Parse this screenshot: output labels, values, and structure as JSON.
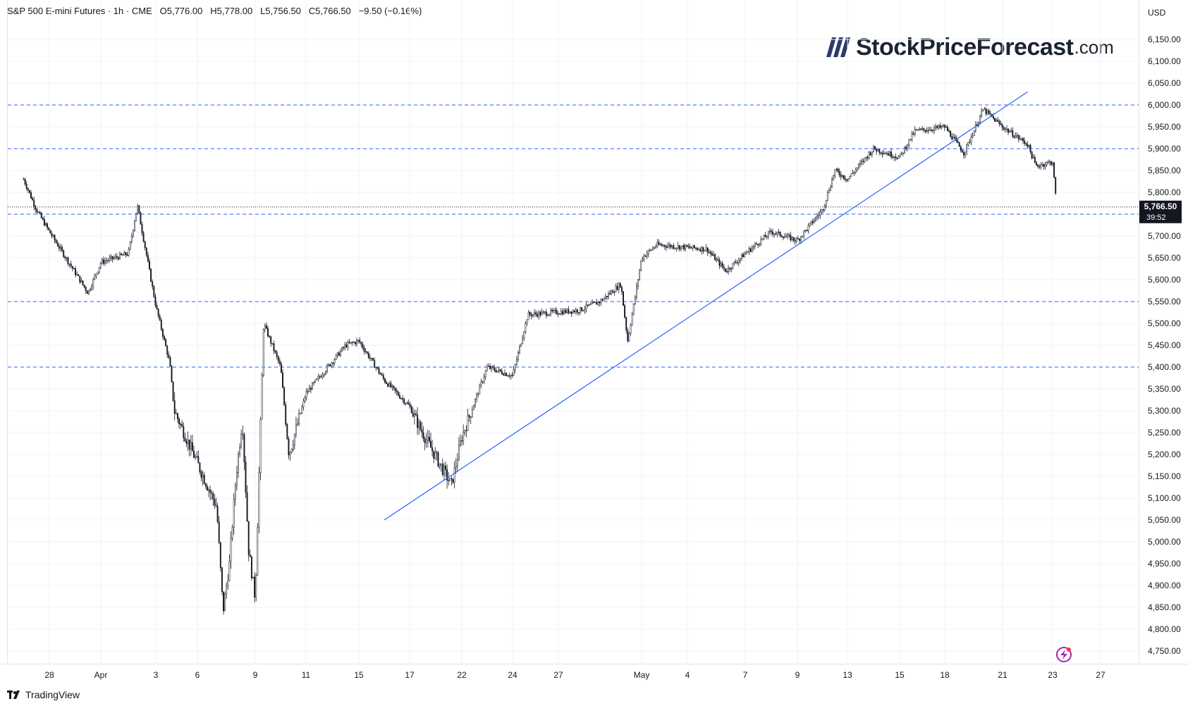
{
  "header": {
    "symbol": "S&P 500 E-mini Futures",
    "interval": "1h",
    "exchange": "CME",
    "open": "O5,776.00",
    "high": "H5,778.00",
    "low": "L5,756.50",
    "close": "C5,766.50",
    "change": "−9.50 (−0.16%)"
  },
  "currency": "USD",
  "brand": {
    "name": "StockPriceForecast",
    "tld": ".com"
  },
  "footer": {
    "text": "TradingView",
    "icon": "tradingview-logo-icon"
  },
  "price_label": {
    "value": "5,766.50",
    "countdown": "39:52"
  },
  "colors": {
    "candles": "#131722",
    "horizontal_levels": "#2962ff",
    "trendline": "#2962ff",
    "price_label_bg": "#131722",
    "text": "#131722",
    "lightning_icon": "#9c27b0"
  },
  "chart_data": {
    "type": "candlestick",
    "title": "S&P 500 E-mini Futures",
    "timeframe": "1h",
    "x_ticks": [
      "28",
      "Apr",
      "3",
      "6",
      "9",
      "11",
      "15",
      "17",
      "22",
      "24",
      "27",
      "May",
      "4",
      "7",
      "9",
      "13",
      "15",
      "18",
      "21",
      "23",
      "27"
    ],
    "y_ticks": [
      "6,150.00",
      "6,100.00",
      "6,050.00",
      "6,000.00",
      "5,950.00",
      "5,900.00",
      "5,850.00",
      "5,800.00",
      "5,750.00",
      "5,700.00",
      "5,650.00",
      "5,600.00",
      "5,550.00",
      "5,500.00",
      "5,450.00",
      "5,400.00",
      "5,350.00",
      "5,300.00",
      "5,250.00",
      "5,200.00",
      "5,150.00",
      "5,100.00",
      "5,050.00",
      "5,000.00",
      "4,950.00",
      "4,900.00",
      "4,850.00",
      "4,800.00",
      "4,750.00"
    ],
    "ylim": [
      4720,
      6180
    ],
    "horizontal_levels": [
      6000,
      5900,
      5750,
      5550,
      5400
    ],
    "current_price": 5766.5,
    "trendlines": [
      {
        "start": {
          "date": "Apr 16",
          "price": 5050
        },
        "end": {
          "date": "May 22",
          "price": 6030
        }
      }
    ],
    "price_path": [
      {
        "date": "Mar 26",
        "price": 5830
      },
      {
        "date": "Mar 27",
        "price": 5760
      },
      {
        "date": "Mar 28",
        "price": 5710
      },
      {
        "date": "Mar 31",
        "price": 5570
      },
      {
        "date": "Apr 1",
        "price": 5640
      },
      {
        "date": "Apr 2",
        "price": 5660
      },
      {
        "date": "Apr 2",
        "price": 5770
      },
      {
        "date": "Apr 3",
        "price": 5540
      },
      {
        "date": "Apr 4",
        "price": 5410
      },
      {
        "date": "Apr 4",
        "price": 5300
      },
      {
        "date": "Apr 7",
        "price": 5080
      },
      {
        "date": "Apr 7",
        "price": 4840
      },
      {
        "date": "Apr 7",
        "price": 4950
      },
      {
        "date": "Apr 8",
        "price": 5150
      },
      {
        "date": "Apr 8",
        "price": 5280
      },
      {
        "date": "Apr 8",
        "price": 4980
      },
      {
        "date": "Apr 9",
        "price": 4870
      },
      {
        "date": "Apr 9",
        "price": 5500
      },
      {
        "date": "Apr 10",
        "price": 5400
      },
      {
        "date": "Apr 10",
        "price": 5200
      },
      {
        "date": "Apr 11",
        "price": 5340
      },
      {
        "date": "Apr 14",
        "price": 5450
      },
      {
        "date": "Apr 15",
        "price": 5460
      },
      {
        "date": "Apr 16",
        "price": 5370
      },
      {
        "date": "Apr 17",
        "price": 5310
      },
      {
        "date": "Apr 18",
        "price": 5260
      },
      {
        "date": "Apr 21",
        "price": 5130
      },
      {
        "date": "Apr 22",
        "price": 5240
      },
      {
        "date": "Apr 23",
        "price": 5400
      },
      {
        "date": "Apr 24",
        "price": 5380
      },
      {
        "date": "Apr 25",
        "price": 5520
      },
      {
        "date": "Apr 28",
        "price": 5530
      },
      {
        "date": "Apr 29",
        "price": 5550
      },
      {
        "date": "Apr 30",
        "price": 5590
      },
      {
        "date": "Apr 30",
        "price": 5460
      },
      {
        "date": "May 1",
        "price": 5650
      },
      {
        "date": "May 2",
        "price": 5680
      },
      {
        "date": "May 5",
        "price": 5670
      },
      {
        "date": "May 6",
        "price": 5620
      },
      {
        "date": "May 7",
        "price": 5660
      },
      {
        "date": "May 8",
        "price": 5710
      },
      {
        "date": "May 9",
        "price": 5690
      },
      {
        "date": "May 11",
        "price": 5760
      },
      {
        "date": "May 12",
        "price": 5850
      },
      {
        "date": "May 13",
        "price": 5830
      },
      {
        "date": "May 14",
        "price": 5900
      },
      {
        "date": "May 15",
        "price": 5880
      },
      {
        "date": "May 16",
        "price": 5940
      },
      {
        "date": "May 18",
        "price": 5950
      },
      {
        "date": "May 19",
        "price": 5890
      },
      {
        "date": "May 20",
        "price": 5990
      },
      {
        "date": "May 21",
        "price": 5950
      },
      {
        "date": "May 22",
        "price": 5910
      },
      {
        "date": "May 22",
        "price": 5860
      },
      {
        "date": "May 23",
        "price": 5870
      },
      {
        "date": "May 23",
        "price": 5766.5
      }
    ]
  }
}
